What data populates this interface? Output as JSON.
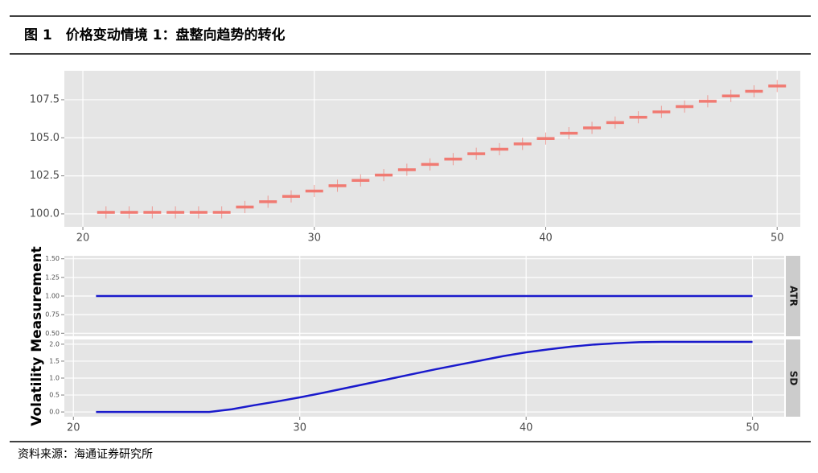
{
  "header": {
    "title": "图 1　价格变动情境 1：盘整向趋势的转化"
  },
  "chart_data": [
    {
      "type": "errorbar",
      "color": "#f07a72",
      "x": [
        21,
        22,
        23,
        24,
        25,
        26,
        27,
        28,
        29,
        30,
        31,
        32,
        33,
        34,
        35,
        36,
        37,
        38,
        39,
        40,
        41,
        42,
        43,
        44,
        45,
        46,
        47,
        48,
        49,
        50
      ],
      "values": [
        100.1,
        100.1,
        100.1,
        100.1,
        100.1,
        100.1,
        100.45,
        100.8,
        101.15,
        101.5,
        101.85,
        102.2,
        102.55,
        102.9,
        103.25,
        103.6,
        103.95,
        104.25,
        104.6,
        104.95,
        105.3,
        105.65,
        106.0,
        106.35,
        106.7,
        107.05,
        107.4,
        107.75,
        108.05,
        108.4
      ],
      "errors": [
        0.4,
        0.4,
        0.4,
        0.4,
        0.4,
        0.4,
        0.4,
        0.4,
        0.4,
        0.4,
        0.4,
        0.4,
        0.4,
        0.4,
        0.4,
        0.4,
        0.4,
        0.4,
        0.4,
        0.4,
        0.4,
        0.4,
        0.4,
        0.4,
        0.4,
        0.4,
        0.4,
        0.4,
        0.4,
        0.4
      ],
      "xlim": [
        19.2,
        51.0
      ],
      "ylim": [
        99.15,
        109.4
      ],
      "xticks": [
        20,
        30,
        40,
        50
      ],
      "yticks": [
        {
          "value": 100,
          "label": "100.0"
        },
        {
          "value": 102.5,
          "label": "102.5"
        },
        {
          "value": 105,
          "label": "105.0"
        },
        {
          "value": 107.5,
          "label": "107.5"
        }
      ],
      "grid": true
    },
    {
      "type": "line",
      "color": "#1a1acc",
      "facet_label": "ATR",
      "ylabel": "Volatility Measurement",
      "x": [
        21,
        50
      ],
      "values": [
        1.0,
        1.0
      ],
      "xlim": [
        19.6,
        51.4
      ],
      "ylim": [
        0.46,
        1.54
      ],
      "yticks": [
        {
          "value": 0.5,
          "label": "0.50"
        },
        {
          "value": 0.75,
          "label": "0.75"
        },
        {
          "value": 1,
          "label": "1.00"
        },
        {
          "value": 1.25,
          "label": "1.25"
        },
        {
          "value": 1.5,
          "label": "1.50"
        }
      ],
      "grid": true
    },
    {
      "type": "line",
      "color": "#1a1acc",
      "facet_label": "SD",
      "x": [
        21,
        22,
        23,
        24,
        25,
        26,
        27,
        28,
        29,
        30,
        31,
        32,
        33,
        34,
        35,
        36,
        37,
        38,
        39,
        40,
        41,
        42,
        43,
        44,
        45,
        46,
        47,
        48,
        49,
        50
      ],
      "values": [
        0,
        0,
        0,
        0,
        0,
        0,
        0.08,
        0.2,
        0.31,
        0.43,
        0.56,
        0.7,
        0.84,
        0.98,
        1.12,
        1.26,
        1.39,
        1.52,
        1.65,
        1.76,
        1.85,
        1.93,
        1.99,
        2.03,
        2.06,
        2.07,
        2.07,
        2.07,
        2.07,
        2.07
      ],
      "xlim": [
        19.6,
        51.4
      ],
      "ylim": [
        -0.14,
        2.14
      ],
      "xticks": [
        20,
        30,
        40,
        50
      ],
      "yticks": [
        {
          "value": 0,
          "label": "0.0"
        },
        {
          "value": 0.5,
          "label": "0.5"
        },
        {
          "value": 1,
          "label": "1.0"
        },
        {
          "value": 1.5,
          "label": "1.5"
        },
        {
          "value": 2,
          "label": "2.0"
        }
      ],
      "grid": true
    }
  ],
  "source": "资料来源：海通证券研究所"
}
